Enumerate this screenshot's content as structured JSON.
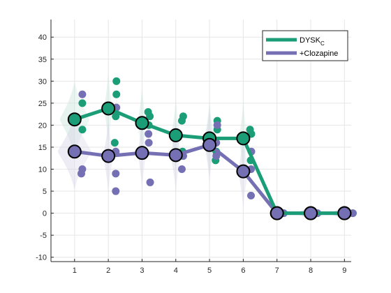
{
  "chart_data": {
    "type": "line",
    "title": "",
    "xlabel": "",
    "ylabel": "",
    "xlim": [
      0.3,
      9.2
    ],
    "ylim": [
      -11,
      44
    ],
    "x_ticks": [
      1,
      2,
      3,
      4,
      5,
      6,
      7,
      8,
      9
    ],
    "y_ticks": [
      -10,
      -5,
      0,
      5,
      10,
      15,
      20,
      25,
      30,
      35,
      40
    ],
    "grid": true,
    "legend_position": "top-right",
    "x": [
      1,
      2,
      3,
      4,
      5,
      6,
      7,
      8,
      9
    ],
    "series": [
      {
        "name": "DYSK",
        "name_subscript": "C",
        "color": "#1b9e77",
        "values": [
          21.3,
          23.8,
          20.5,
          17.7,
          17.0,
          17.0,
          0,
          0,
          0
        ],
        "raw_points": [
          [
            1.23,
            25
          ],
          [
            1.23,
            19
          ],
          [
            2.24,
            30
          ],
          [
            2.24,
            27
          ],
          [
            2.22,
            22
          ],
          [
            2.19,
            16
          ],
          [
            3.18,
            23
          ],
          [
            3.23,
            22
          ],
          [
            3.2,
            20
          ],
          [
            4.22,
            22
          ],
          [
            4.18,
            21
          ],
          [
            4.2,
            14
          ],
          [
            4.22,
            13
          ],
          [
            5.23,
            21
          ],
          [
            5.23,
            19
          ],
          [
            5.2,
            14
          ],
          [
            5.18,
            12
          ],
          [
            6.2,
            19
          ],
          [
            6.24,
            18
          ],
          [
            6.22,
            12
          ],
          [
            7.2,
            0
          ],
          [
            8.2,
            0
          ],
          [
            9.25,
            0
          ]
        ],
        "violin_widths": [
          0.35,
          0.1,
          0.1,
          0.1,
          0.12,
          0.1,
          0.1,
          0.3,
          0.3
        ]
      },
      {
        "name": "+Clozapine",
        "color": "#7570b3",
        "values": [
          14.0,
          13.0,
          13.7,
          13.2,
          15.5,
          9.5,
          0,
          0,
          0
        ],
        "raw_points": [
          [
            1.23,
            27
          ],
          [
            1.23,
            10
          ],
          [
            1.2,
            9
          ],
          [
            2.24,
            24
          ],
          [
            2.22,
            14
          ],
          [
            2.22,
            9
          ],
          [
            2.22,
            5
          ],
          [
            3.19,
            18
          ],
          [
            3.2,
            16
          ],
          [
            3.24,
            7
          ],
          [
            4.22,
            13
          ],
          [
            4.18,
            10
          ],
          [
            5.23,
            20
          ],
          [
            5.2,
            16
          ],
          [
            5.2,
            13
          ],
          [
            6.24,
            14
          ],
          [
            6.23,
            10
          ],
          [
            6.23,
            4
          ],
          [
            7.2,
            0
          ],
          [
            8.2,
            0
          ],
          [
            9.25,
            0
          ]
        ],
        "violin_widths": [
          0.4,
          0.12,
          0.1,
          0.12,
          0.12,
          0.12,
          0.1,
          0.3,
          0.3
        ]
      }
    ]
  },
  "legend": {
    "items": [
      {
        "label": "DYSK",
        "subscript": "C"
      },
      {
        "label": "+Clozapine",
        "subscript": ""
      }
    ]
  }
}
